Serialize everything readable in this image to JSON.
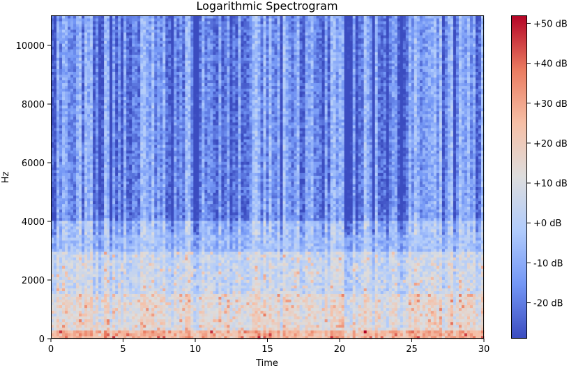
{
  "chart_data": {
    "type": "heatmap",
    "title": "Logarithmic Spectrogram",
    "xlabel": "Time",
    "ylabel": "Hz",
    "xlim": [
      0,
      30
    ],
    "ylim": [
      0,
      11025
    ],
    "x_ticks": [
      0,
      5,
      10,
      15,
      20,
      25,
      30
    ],
    "y_ticks": [
      0,
      2000,
      4000,
      6000,
      8000,
      10000
    ],
    "colorbar": {
      "label_ticks": [
        "+50 dB",
        "+40 dB",
        "+30 dB",
        "+20 dB",
        "+10 dB",
        "+0 dB",
        "-10 dB",
        "-20 dB"
      ],
      "tick_values": [
        50,
        40,
        30,
        20,
        10,
        0,
        -10,
        -20
      ],
      "range": [
        -29,
        52
      ],
      "colormap": "coolwarm",
      "colors": [
        "#3b4cc0",
        "#7396f5",
        "#b0cbfc",
        "#dddddd",
        "#f6bfa6",
        "#ea7b60",
        "#b40426"
      ]
    },
    "grid": false,
    "texture": {
      "description_free_params": true,
      "level_by_band_db": [
        {
          "hz_max": 300,
          "db": 28
        },
        {
          "hz_max": 1500,
          "db": 14
        },
        {
          "hz_max": 3000,
          "db": 6
        },
        {
          "hz_max": 4000,
          "db": -4
        },
        {
          "hz_max": 11025,
          "db": -14
        }
      ]
    }
  }
}
